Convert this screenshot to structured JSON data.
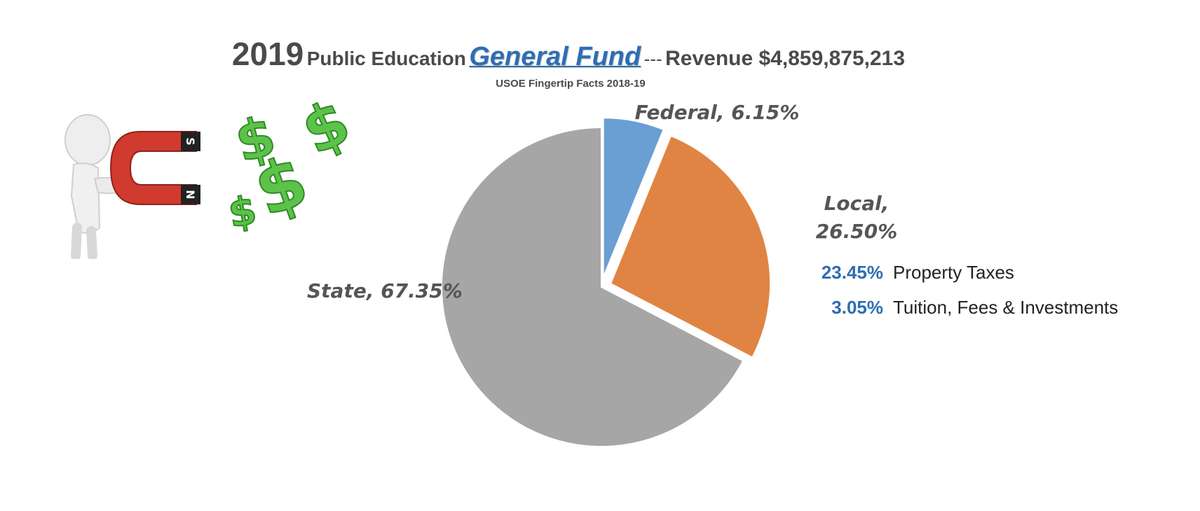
{
  "title": {
    "year": "2019",
    "prefix": "Public Education",
    "highlight": "General Fund",
    "separator": "---",
    "revenue": "Revenue $4,859,875,213"
  },
  "source": "USOE Fingertip Facts 2018-19",
  "chart_data": {
    "type": "pie",
    "categories": [
      "Federal",
      "Local",
      "State"
    ],
    "values": [
      6.15,
      26.5,
      67.35
    ],
    "labels": [
      "Federal, 6.15%",
      "Local,",
      "State, 67.35%"
    ],
    "label_line2": [
      "",
      "26.50%",
      ""
    ],
    "colors": [
      "#6a9fd4",
      "#e08443",
      "#a6a6a6"
    ],
    "exploded": [
      true,
      true,
      false
    ],
    "local_breakdown": [
      {
        "percent": "23.45%",
        "label": "Property Taxes"
      },
      {
        "percent": "3.05%",
        "label": "Tuition, Fees & Investments"
      }
    ]
  },
  "illustration": {
    "figure": "stick-figure",
    "magnet": "horseshoe-magnet",
    "magnet_labels": [
      "S",
      "N"
    ],
    "symbol": "$",
    "magnet_color": "#d13a2f",
    "dollar_color": "#5cc24a"
  }
}
